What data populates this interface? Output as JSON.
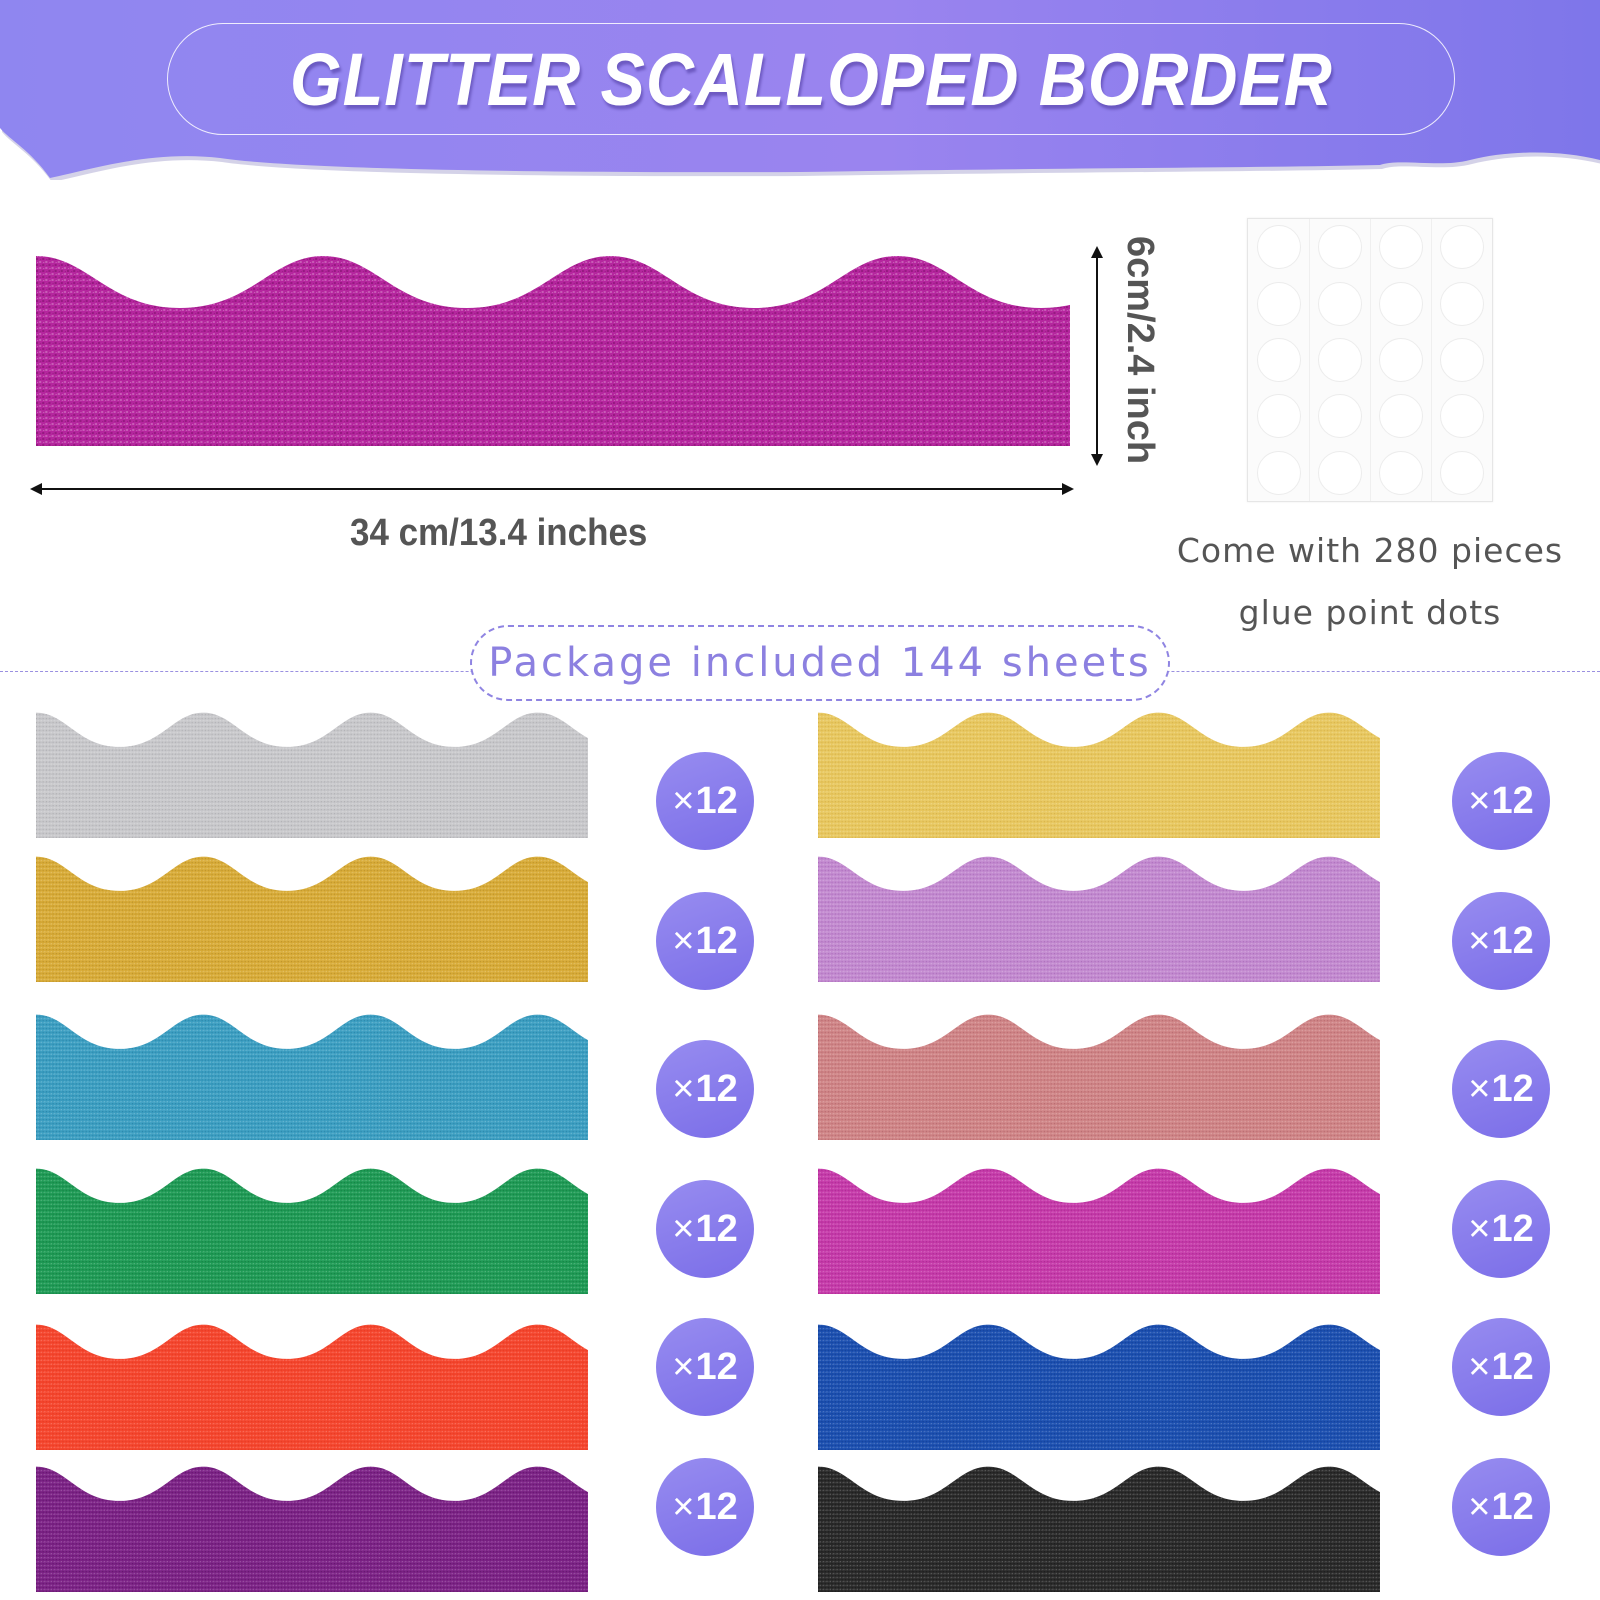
{
  "header": {
    "title": "GLITTER SCALLOPED BORDER",
    "background_colors": [
      "#8a80ee",
      "#9c84ee",
      "#7d75ea"
    ]
  },
  "sample": {
    "color": "#b5269e",
    "width_label": "34 cm/13.4 inches",
    "height_label": "6cm/2.4 inch"
  },
  "glue": {
    "caption_line1": "Come with 280 pieces",
    "caption_line2": "glue point dots",
    "rows": 5,
    "cols": 4
  },
  "package": {
    "label": "Package included 144 sheets",
    "accent": "#8c80e0"
  },
  "strips": {
    "left": [
      {
        "name": "silver",
        "color": "#c9c9cc",
        "dark": "#9a9a9f",
        "quantity": "12"
      },
      {
        "name": "gold",
        "color": "#d9ac38",
        "dark": "#a57d1e",
        "quantity": "12"
      },
      {
        "name": "light-blue",
        "color": "#3c9fc2",
        "dark": "#1d7197",
        "quantity": "12"
      },
      {
        "name": "green",
        "color": "#1e9b55",
        "dark": "#0f6b37",
        "quantity": "12"
      },
      {
        "name": "red-orange",
        "color": "#f5452d",
        "dark": "#d8321c",
        "quantity": "12"
      },
      {
        "name": "purple",
        "color": "#7d2287",
        "dark": "#4e1055",
        "quantity": "12"
      }
    ],
    "right": [
      {
        "name": "light-gold",
        "color": "#e8c860",
        "dark": "#c9a23a",
        "quantity": "12"
      },
      {
        "name": "lavender",
        "color": "#c38ad0",
        "dark": "#9a5aab",
        "quantity": "12"
      },
      {
        "name": "rose-pink",
        "color": "#d08587",
        "dark": "#a4555c",
        "quantity": "12"
      },
      {
        "name": "magenta",
        "color": "#c63aaa",
        "dark": "#972080",
        "quantity": "12"
      },
      {
        "name": "royal-blue",
        "color": "#1b4fb0",
        "dark": "#0e3585",
        "quantity": "12"
      },
      {
        "name": "black",
        "color": "#2a2a2a",
        "dark": "#111111",
        "quantity": "12"
      }
    ]
  },
  "badge": {
    "prefix": "×",
    "color": "#8a7eec"
  }
}
